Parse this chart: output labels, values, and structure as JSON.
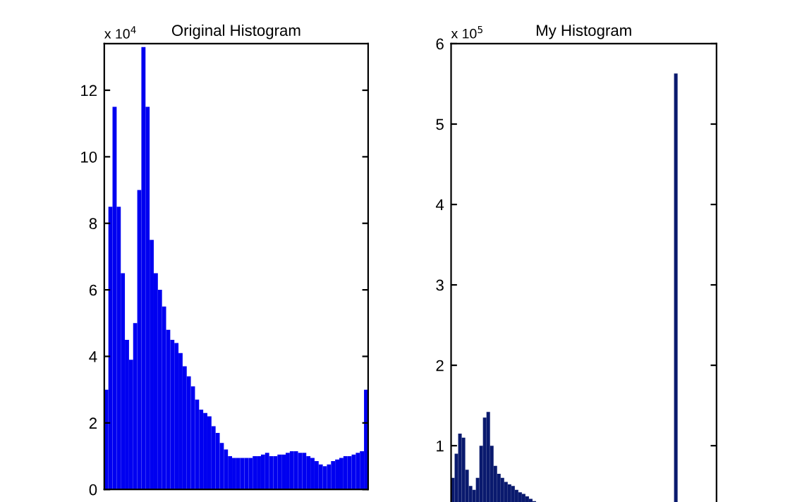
{
  "chart_data": [
    {
      "type": "bar",
      "title": "Original Histogram",
      "annotations": [
        "x 10$^{4}$"
      ],
      "color": "#0000f0",
      "categories": [
        null,
        null,
        null,
        null,
        null,
        null,
        null,
        null,
        null,
        null,
        null,
        null,
        null,
        null,
        null,
        null,
        null,
        null,
        null,
        null,
        null,
        null,
        null,
        null,
        null,
        null,
        null,
        null,
        null,
        null,
        null,
        null,
        null,
        null,
        null,
        null,
        null,
        null,
        null,
        null,
        null,
        null,
        null,
        null,
        null,
        null,
        null,
        null,
        null,
        null,
        null,
        null,
        null,
        null,
        null,
        null,
        null,
        null,
        null,
        null,
        null,
        null,
        null,
        null
      ],
      "values": [
        3,
        8.5,
        11.5,
        8.5,
        6.5,
        4.5,
        3.9,
        5,
        9,
        13.3,
        11.5,
        7.5,
        6.5,
        6,
        5.5,
        4.8,
        4.5,
        4.4,
        4.1,
        3.7,
        3.4,
        3.1,
        2.7,
        2.4,
        2.3,
        2.2,
        1.9,
        1.7,
        1.4,
        1.2,
        1.0,
        0.95,
        0.95,
        0.95,
        0.95,
        0.95,
        1.0,
        1.0,
        1.05,
        1.1,
        1.0,
        1.0,
        1.05,
        1.05,
        1.1,
        1.15,
        1.15,
        1.1,
        1.1,
        1.0,
        0.95,
        0.85,
        0.75,
        0.7,
        0.75,
        0.85,
        0.9,
        0.95,
        1.0,
        1.0,
        1.05,
        1.1,
        1.15,
        3
      ],
      "ylim": [
        0,
        13.4
      ],
      "yticks": [
        0,
        2,
        4,
        6,
        8,
        10,
        12
      ],
      "tick_labels": "y",
      "grid": false,
      "legend": false
    },
    {
      "type": "bar",
      "title": "My Histogram",
      "annotations": [
        "x 10$^{5}$"
      ],
      "color": "#0a1a6e",
      "categories": [
        null,
        null,
        null,
        null,
        null,
        null,
        null,
        null,
        null,
        null,
        null,
        null,
        null,
        null,
        null,
        null,
        null,
        null,
        null,
        null,
        null,
        null,
        null,
        null,
        null,
        null,
        null,
        null,
        null,
        null,
        null,
        null,
        null,
        null,
        null,
        null,
        null,
        null,
        null,
        null,
        null,
        null,
        null,
        null,
        null,
        null,
        null,
        null,
        null,
        null,
        null,
        null,
        null,
        null,
        null,
        null,
        null,
        null,
        null,
        null,
        null,
        null,
        null,
        null,
        null,
        null,
        null,
        null,
        null,
        null,
        null,
        null,
        null,
        null,
        null
      ],
      "values": [
        0.6,
        0.9,
        1.15,
        1.1,
        0.7,
        0.5,
        0.45,
        0.6,
        1.0,
        1.35,
        1.42,
        1.0,
        0.75,
        0.65,
        0.6,
        0.55,
        0.52,
        0.5,
        0.45,
        0.42,
        0.4,
        0.37,
        0.34,
        0.31,
        null,
        null,
        null,
        0,
        0,
        0,
        0,
        0,
        0,
        0,
        0,
        0,
        0,
        0,
        0,
        0,
        0,
        0,
        0,
        0,
        0,
        0,
        0,
        0,
        0,
        0,
        0,
        0,
        0,
        0,
        0,
        0,
        0,
        0,
        0,
        0,
        0,
        0,
        0,
        5.63,
        0,
        0,
        0,
        0,
        0,
        0,
        0,
        0,
        0,
        0,
        0
      ],
      "ylim": [
        0,
        6
      ],
      "yticks": [
        1,
        2,
        3,
        4,
        5,
        6
      ],
      "tick_labels": "y",
      "grid": false,
      "legend": false
    }
  ]
}
